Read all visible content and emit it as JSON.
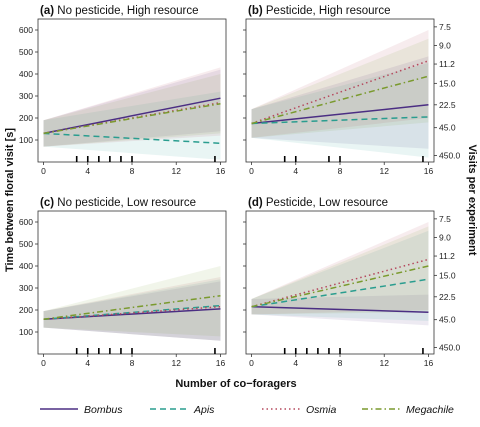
{
  "figure": {
    "xlabel": "Number of co−foragers",
    "ylabel": "Time between floral visit [s]",
    "y2label": "Visits per experiment"
  },
  "legend": [
    {
      "name": "Bombus",
      "color": "#4b2e83",
      "dash": "solid"
    },
    {
      "name": "Apis",
      "color": "#2a9d8f",
      "dash": "dashed"
    },
    {
      "name": "Osmia",
      "color": "#b5485d",
      "dash": "dotted"
    },
    {
      "name": "Megachile",
      "color": "#7a9a2e",
      "dash": "dotdash"
    }
  ],
  "chart_data": [
    {
      "type": "line",
      "panel": "(a)",
      "title": "No pesticide, High resource",
      "xlim": [
        -0.5,
        16.5
      ],
      "ylim": [
        0,
        650
      ],
      "xticks": [
        "0",
        "4",
        "8",
        "12",
        "16"
      ],
      "yticks": [
        "100",
        "200",
        "300",
        "400",
        "500",
        "600"
      ],
      "rug_x": [
        3,
        4,
        5,
        6,
        7,
        8,
        15.5
      ],
      "series": [
        {
          "name": "Bombus",
          "x": [
            0,
            16
          ],
          "values": [
            130,
            290
          ],
          "band_lo": [
            70,
            140
          ],
          "band_hi": [
            190,
            420
          ]
        },
        {
          "name": "Apis",
          "x": [
            0,
            16
          ],
          "values": [
            130,
            85
          ],
          "band_lo": [
            70,
            10
          ],
          "band_hi": [
            190,
            320
          ]
        },
        {
          "name": "Osmia",
          "x": [
            0,
            16
          ],
          "values": [
            130,
            270
          ],
          "band_lo": [
            70,
            120
          ],
          "band_hi": [
            190,
            430
          ]
        },
        {
          "name": "Megachile",
          "x": [
            0,
            16
          ],
          "values": [
            130,
            265
          ],
          "band_lo": [
            70,
            130
          ],
          "band_hi": [
            190,
            400
          ]
        }
      ]
    },
    {
      "type": "line",
      "panel": "(b)",
      "title": "Pesticide, High resource",
      "xlim": [
        -0.5,
        16.5
      ],
      "ylim": [
        0,
        650
      ],
      "xticks": [
        "0",
        "4",
        "8",
        "12",
        "16"
      ],
      "yticks": [
        "100",
        "200",
        "300",
        "400",
        "500",
        "600"
      ],
      "y2ticks": [
        "7.5",
        "9.0",
        "11.2",
        "15.0",
        "22.5",
        "45.0",
        "450.0"
      ],
      "rug_x": [
        3,
        4,
        7,
        8,
        15.5
      ],
      "series": [
        {
          "name": "Bombus",
          "x": [
            0,
            16
          ],
          "values": [
            175,
            260
          ],
          "band_lo": [
            110,
            60
          ],
          "band_hi": [
            240,
            480
          ]
        },
        {
          "name": "Apis",
          "x": [
            0,
            16
          ],
          "values": [
            175,
            205
          ],
          "band_lo": [
            110,
            20
          ],
          "band_hi": [
            240,
            450
          ]
        },
        {
          "name": "Osmia",
          "x": [
            0,
            16
          ],
          "values": [
            175,
            460
          ],
          "band_lo": [
            110,
            200
          ],
          "band_hi": [
            240,
            600
          ]
        },
        {
          "name": "Megachile",
          "x": [
            0,
            16
          ],
          "values": [
            175,
            390
          ],
          "band_lo": [
            110,
            180
          ],
          "band_hi": [
            240,
            560
          ]
        }
      ]
    },
    {
      "type": "line",
      "panel": "(c)",
      "title": "No pesticide, Low resource",
      "xlim": [
        -0.5,
        16.5
      ],
      "ylim": [
        0,
        650
      ],
      "xticks": [
        "0",
        "4",
        "8",
        "12",
        "16"
      ],
      "yticks": [
        "100",
        "200",
        "300",
        "400",
        "500",
        "600"
      ],
      "rug_x": [
        3,
        4,
        5,
        6,
        7,
        8,
        15.5
      ],
      "series": [
        {
          "name": "Bombus",
          "x": [
            0,
            16
          ],
          "values": [
            158,
            205
          ],
          "band_lo": [
            120,
            60
          ],
          "band_hi": [
            195,
            330
          ]
        },
        {
          "name": "Apis",
          "x": [
            0,
            16
          ],
          "values": [
            158,
            220
          ],
          "band_lo": [
            120,
            60
          ],
          "band_hi": [
            195,
            340
          ]
        },
        {
          "name": "Osmia",
          "x": [
            0,
            16
          ],
          "values": [
            158,
            215
          ],
          "band_lo": [
            120,
            60
          ],
          "band_hi": [
            195,
            350
          ]
        },
        {
          "name": "Megachile",
          "x": [
            0,
            16
          ],
          "values": [
            158,
            265
          ],
          "band_lo": [
            120,
            80
          ],
          "band_hi": [
            195,
            400
          ]
        }
      ]
    },
    {
      "type": "line",
      "panel": "(d)",
      "title": "Pesticide, Low resource",
      "xlim": [
        -0.5,
        16.5
      ],
      "ylim": [
        0,
        650
      ],
      "xticks": [
        "0",
        "4",
        "8",
        "12",
        "16"
      ],
      "yticks": [
        "100",
        "200",
        "300",
        "400",
        "500",
        "600"
      ],
      "y2ticks": [
        "7.5",
        "9.0",
        "11.2",
        "15.0",
        "22.5",
        "45.0",
        "450.0"
      ],
      "rug_x": [
        3,
        4,
        5,
        6,
        7,
        8,
        15.5
      ],
      "series": [
        {
          "name": "Bombus",
          "x": [
            0,
            16
          ],
          "values": [
            215,
            190
          ],
          "band_lo": [
            180,
            130
          ],
          "band_hi": [
            250,
            270
          ]
        },
        {
          "name": "Apis",
          "x": [
            0,
            16
          ],
          "values": [
            215,
            340
          ],
          "band_lo": [
            180,
            150
          ],
          "band_hi": [
            250,
            560
          ]
        },
        {
          "name": "Osmia",
          "x": [
            0,
            16
          ],
          "values": [
            215,
            430
          ],
          "band_lo": [
            180,
            200
          ],
          "band_hi": [
            250,
            600
          ]
        },
        {
          "name": "Megachile",
          "x": [
            0,
            16
          ],
          "values": [
            215,
            400
          ],
          "band_lo": [
            180,
            190
          ],
          "band_hi": [
            250,
            580
          ]
        }
      ]
    }
  ]
}
